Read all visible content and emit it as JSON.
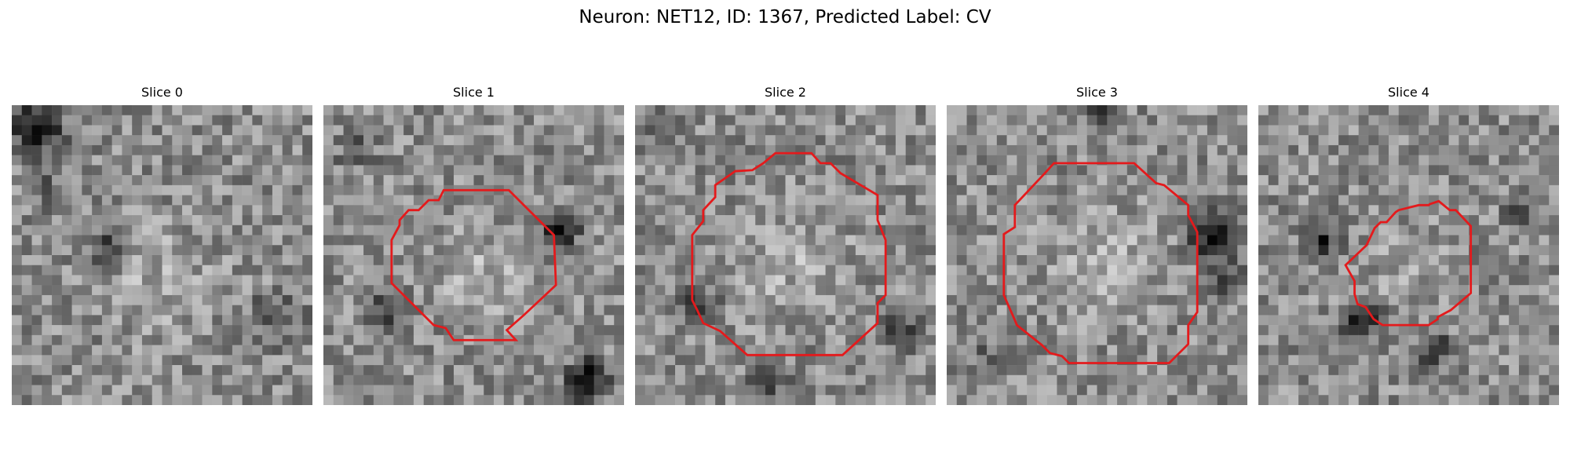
{
  "figure": {
    "title": "Neuron: NET12, ID: 1367, Predicted Label: CV",
    "contour_color": "#e41a1c",
    "colormap": "gray"
  },
  "panels": [
    {
      "title": "Slice 0",
      "has_contour": false
    },
    {
      "title": "Slice 1",
      "has_contour": true
    },
    {
      "title": "Slice 2",
      "has_contour": true
    },
    {
      "title": "Slice 3",
      "has_contour": true
    },
    {
      "title": "Slice 4",
      "has_contour": true
    }
  ]
}
